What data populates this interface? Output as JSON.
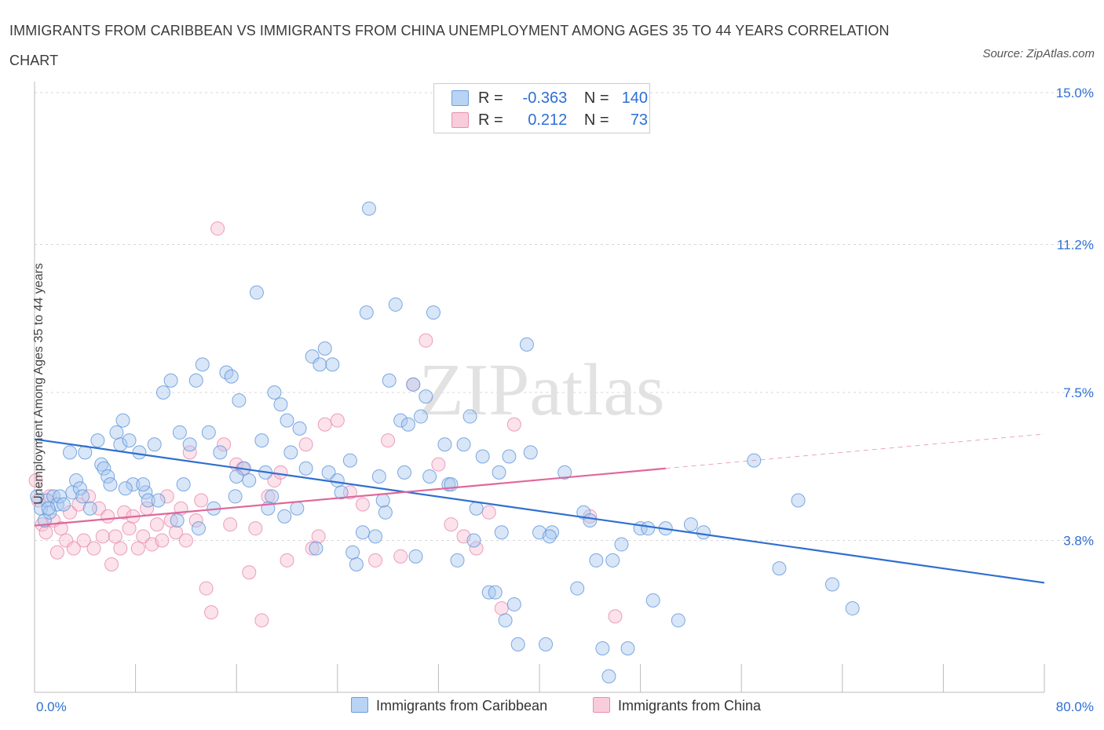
{
  "title": "IMMIGRANTS FROM CARIBBEAN VS IMMIGRANTS FROM CHINA UNEMPLOYMENT AMONG AGES 35 TO 44 YEARS CORRELATION CHART",
  "source": "Source: ZipAtlas.com",
  "watermark": "ZIPatlas",
  "legend": {
    "rows": [
      {
        "r_label": "R =",
        "r_value": "-0.363",
        "n_label": "N =",
        "n_value": "140"
      },
      {
        "r_label": "R =",
        "r_value": "0.212",
        "n_label": "N =",
        "n_value": "73"
      }
    ]
  },
  "bottom_legend": {
    "caribbean": "Immigrants from Caribbean",
    "china": "Immigrants from China"
  },
  "colors": {
    "caribbean_fill": "#a8c8f0",
    "caribbean_stroke": "#5f95d8",
    "caribbean_line": "#2f6fcf",
    "china_fill": "#f7bfd2",
    "china_stroke": "#e68aab",
    "china_line": "#e0679a",
    "accent_text": "#2e6fd6"
  },
  "chart_data": {
    "type": "scatter",
    "title": "IMMIGRANTS FROM CARIBBEAN VS IMMIGRANTS FROM CHINA UNEMPLOYMENT AMONG AGES 35 TO 44 YEARS CORRELATION CHART",
    "xlabel": "",
    "ylabel": "Unemployment Among Ages 35 to 44 years",
    "xlim": [
      0,
      80
    ],
    "ylim": [
      0,
      15
    ],
    "x_tick_labels": [
      "0.0%",
      "80.0%"
    ],
    "y_ticks": [
      3.8,
      7.5,
      11.2,
      15.0
    ],
    "y_tick_labels": [
      "3.8%",
      "7.5%",
      "11.2%",
      "15.0%"
    ],
    "grid": true,
    "series": [
      {
        "name": "Immigrants from Caribbean",
        "R": -0.363,
        "N": 140,
        "trend": {
          "x": [
            0,
            80
          ],
          "y": [
            6.33,
            2.74
          ]
        },
        "points": [
          [
            0.5,
            4.6
          ],
          [
            0.8,
            4.3
          ],
          [
            1,
            4.8
          ],
          [
            1.2,
            4.5
          ],
          [
            1.5,
            4.9
          ],
          [
            1.8,
            4.7
          ],
          [
            2,
            4.9
          ],
          [
            2.3,
            4.7
          ],
          [
            2.8,
            6
          ],
          [
            3,
            5
          ],
          [
            3.3,
            5.3
          ],
          [
            3.6,
            5.1
          ],
          [
            3.8,
            4.9
          ],
          [
            4,
            6
          ],
          [
            4.4,
            4.6
          ],
          [
            5,
            6.3
          ],
          [
            5.3,
            5.7
          ],
          [
            5.5,
            5.6
          ],
          [
            5.8,
            5.4
          ],
          [
            6,
            5.2
          ],
          [
            6.5,
            6.5
          ],
          [
            6.8,
            6.2
          ],
          [
            7,
            6.8
          ],
          [
            7.5,
            6.3
          ],
          [
            7.8,
            5.2
          ],
          [
            8.3,
            6
          ],
          [
            8.8,
            5
          ],
          [
            9,
            4.8
          ],
          [
            9.5,
            6.2
          ],
          [
            9.8,
            4.8
          ],
          [
            10.2,
            7.5
          ],
          [
            10.8,
            7.8
          ],
          [
            11.5,
            6.5
          ],
          [
            11.8,
            5.2
          ],
          [
            12.3,
            6.2
          ],
          [
            12.8,
            7.8
          ],
          [
            13.3,
            8.2
          ],
          [
            13.8,
            6.5
          ],
          [
            14.2,
            4.6
          ],
          [
            14.7,
            6
          ],
          [
            15.2,
            8
          ],
          [
            15.6,
            7.9
          ],
          [
            16.2,
            7.3
          ],
          [
            16.6,
            5.6
          ],
          [
            17,
            5.3
          ],
          [
            17.6,
            10
          ],
          [
            18,
            6.3
          ],
          [
            18.3,
            5.5
          ],
          [
            18.8,
            4.9
          ],
          [
            19,
            7.5
          ],
          [
            19.5,
            7.2
          ],
          [
            20,
            6.8
          ],
          [
            20.3,
            6
          ],
          [
            20.8,
            4.6
          ],
          [
            21,
            6.6
          ],
          [
            22,
            8.4
          ],
          [
            22.6,
            8.2
          ],
          [
            23,
            8.6
          ],
          [
            23.3,
            5.5
          ],
          [
            23.6,
            8.2
          ],
          [
            24,
            5.3
          ],
          [
            24.3,
            5
          ],
          [
            25,
            5.8
          ],
          [
            25.5,
            3.2
          ],
          [
            26,
            4
          ],
          [
            26.3,
            9.5
          ],
          [
            26.5,
            12.1
          ],
          [
            27,
            3.9
          ],
          [
            27.3,
            5.4
          ],
          [
            27.8,
            4.5
          ],
          [
            28.1,
            7.8
          ],
          [
            28.6,
            9.7
          ],
          [
            29,
            6.8
          ],
          [
            29.3,
            5.5
          ],
          [
            29.6,
            6.7
          ],
          [
            30,
            7.7
          ],
          [
            30.6,
            6.9
          ],
          [
            31,
            7.4
          ],
          [
            31.3,
            5.4
          ],
          [
            31.6,
            9.5
          ],
          [
            32.5,
            6.2
          ],
          [
            32.8,
            5.2
          ],
          [
            33.5,
            3.3
          ],
          [
            34,
            6.2
          ],
          [
            34.5,
            6.9
          ],
          [
            35,
            4.6
          ],
          [
            35.5,
            5.9
          ],
          [
            36,
            2.5
          ],
          [
            36.5,
            2.5
          ],
          [
            37,
            4
          ],
          [
            37.3,
            1.8
          ],
          [
            37.6,
            5.9
          ],
          [
            38,
            2.2
          ],
          [
            38.3,
            1.2
          ],
          [
            39,
            8.7
          ],
          [
            39.3,
            6
          ],
          [
            40,
            4
          ],
          [
            40.5,
            1.2
          ],
          [
            41,
            4
          ],
          [
            42,
            5.5
          ],
          [
            43,
            2.6
          ],
          [
            43.5,
            4.5
          ],
          [
            44,
            4.3
          ],
          [
            44.5,
            3.3
          ],
          [
            45,
            1.1
          ],
          [
            45.5,
            0.4
          ],
          [
            47,
            1.1
          ],
          [
            48,
            4.1
          ],
          [
            48.6,
            4.1
          ],
          [
            49,
            2.3
          ],
          [
            51,
            1.8
          ],
          [
            52,
            4.2
          ],
          [
            53,
            4
          ],
          [
            57,
            5.8
          ],
          [
            59,
            3.1
          ],
          [
            60.5,
            4.8
          ],
          [
            63.2,
            2.7
          ],
          [
            64.8,
            2.1
          ],
          [
            0.2,
            4.9
          ],
          [
            1.1,
            4.6
          ],
          [
            13,
            4.1
          ],
          [
            16,
            5.4
          ],
          [
            19.8,
            4.4
          ],
          [
            21.5,
            5.6
          ],
          [
            22.3,
            3.6
          ],
          [
            25.2,
            3.5
          ],
          [
            30.2,
            3.4
          ],
          [
            33,
            5.2
          ],
          [
            36.8,
            5.5
          ],
          [
            40.8,
            3.9
          ],
          [
            45.8,
            3.3
          ],
          [
            46.5,
            3.7
          ],
          [
            50,
            4.1
          ],
          [
            7.2,
            5.1
          ],
          [
            8.6,
            5.2
          ],
          [
            11.3,
            4.3
          ],
          [
            15.9,
            4.9
          ],
          [
            18.5,
            4.6
          ],
          [
            27.6,
            4.8
          ],
          [
            34.8,
            3.8
          ]
        ]
      },
      {
        "name": "Immigrants from China",
        "R": 0.212,
        "N": 73,
        "trend": {
          "x": [
            0,
            50
          ],
          "y": [
            4.17,
            5.6
          ]
        },
        "trend_dashed": {
          "x": [
            50,
            80
          ],
          "y": [
            5.6,
            6.46
          ]
        },
        "points": [
          [
            0.3,
            4.8
          ],
          [
            0.6,
            4.2
          ],
          [
            0.9,
            4
          ],
          [
            1.2,
            4.9
          ],
          [
            1.5,
            4.3
          ],
          [
            1.8,
            3.5
          ],
          [
            2.1,
            4.1
          ],
          [
            2.5,
            3.8
          ],
          [
            2.8,
            4.5
          ],
          [
            3.1,
            3.6
          ],
          [
            3.5,
            4.7
          ],
          [
            3.9,
            3.8
          ],
          [
            4.3,
            4.9
          ],
          [
            4.7,
            3.6
          ],
          [
            5.1,
            4.6
          ],
          [
            5.4,
            3.9
          ],
          [
            5.8,
            4.4
          ],
          [
            6.1,
            3.2
          ],
          [
            6.4,
            3.9
          ],
          [
            6.8,
            3.6
          ],
          [
            7.1,
            4.5
          ],
          [
            7.5,
            4.1
          ],
          [
            7.8,
            4.4
          ],
          [
            8.2,
            3.6
          ],
          [
            8.6,
            3.9
          ],
          [
            8.9,
            4.6
          ],
          [
            9.3,
            3.7
          ],
          [
            9.7,
            4.2
          ],
          [
            10.1,
            3.8
          ],
          [
            10.5,
            4.9
          ],
          [
            10.8,
            4.3
          ],
          [
            11.2,
            4
          ],
          [
            11.6,
            4.6
          ],
          [
            12,
            3.8
          ],
          [
            12.3,
            6
          ],
          [
            12.8,
            4.3
          ],
          [
            13.2,
            4.8
          ],
          [
            13.6,
            2.6
          ],
          [
            14,
            2
          ],
          [
            14.5,
            11.6
          ],
          [
            15,
            6.2
          ],
          [
            15.5,
            4.2
          ],
          [
            16,
            5.7
          ],
          [
            16.5,
            5.6
          ],
          [
            17,
            3
          ],
          [
            17.5,
            4.1
          ],
          [
            18,
            1.8
          ],
          [
            18.5,
            4.9
          ],
          [
            19,
            5.3
          ],
          [
            19.5,
            5.5
          ],
          [
            20,
            3.3
          ],
          [
            21.5,
            6.2
          ],
          [
            22,
            3.6
          ],
          [
            22.5,
            3.9
          ],
          [
            23,
            6.7
          ],
          [
            24,
            6.8
          ],
          [
            25,
            5
          ],
          [
            26,
            4.7
          ],
          [
            27,
            3.3
          ],
          [
            28,
            6.3
          ],
          [
            29,
            3.4
          ],
          [
            30,
            7.7
          ],
          [
            31,
            8.8
          ],
          [
            32,
            5.7
          ],
          [
            33,
            4.2
          ],
          [
            34,
            3.9
          ],
          [
            35,
            3.6
          ],
          [
            36,
            4.5
          ],
          [
            37,
            2.1
          ],
          [
            38,
            6.7
          ],
          [
            44,
            4.4
          ],
          [
            46,
            1.9
          ],
          [
            0.1,
            5.3
          ]
        ]
      }
    ]
  }
}
